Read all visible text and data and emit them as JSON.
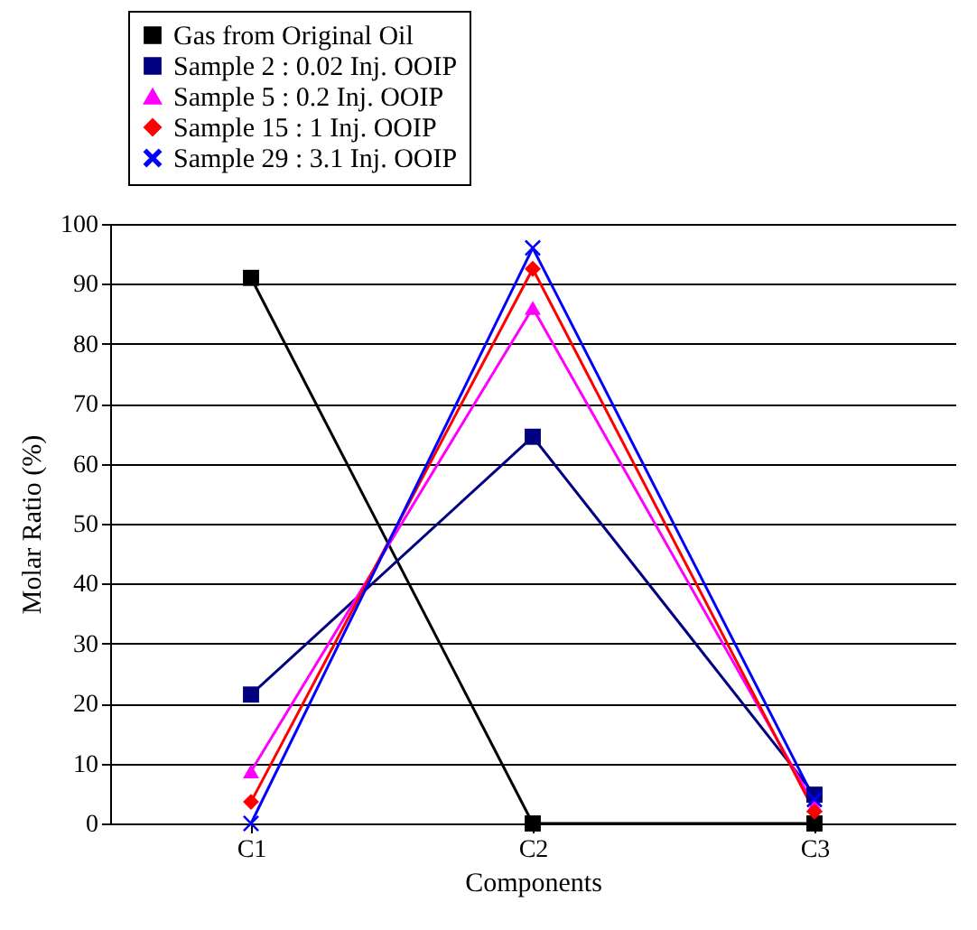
{
  "chart_data": {
    "type": "line",
    "xlabel": "Components",
    "ylabel": "Molar Ratio (%)",
    "categories": [
      "C1",
      "C2",
      "C3"
    ],
    "ylim": [
      0,
      100
    ],
    "yticks": [
      0,
      10,
      20,
      30,
      40,
      50,
      60,
      70,
      80,
      90,
      100
    ],
    "grid": "y",
    "legend": "top",
    "line_style": "solid",
    "series": [
      {
        "name": "Gas from Original Oil",
        "color": "#000000",
        "marker": "square",
        "values": [
          91,
          0,
          0
        ]
      },
      {
        "name": "Sample 2 : 0.02 Inj. OOIP",
        "color": "#000080",
        "marker": "square",
        "values": [
          21.5,
          64.5,
          4.8
        ]
      },
      {
        "name": "Sample 5 : 0.2 Inj. OOIP",
        "color": "#ff00ff",
        "marker": "triangle",
        "values": [
          8.7,
          86,
          3
        ]
      },
      {
        "name": "Sample 15 : 1 Inj. OOIP",
        "color": "#ff0000",
        "marker": "diamond",
        "values": [
          3.6,
          92.5,
          2
        ]
      },
      {
        "name": "Sample 29 : 3.1 Inj. OOIP",
        "color": "#0000ff",
        "marker": "cross",
        "values": [
          0,
          96,
          4
        ]
      }
    ]
  }
}
